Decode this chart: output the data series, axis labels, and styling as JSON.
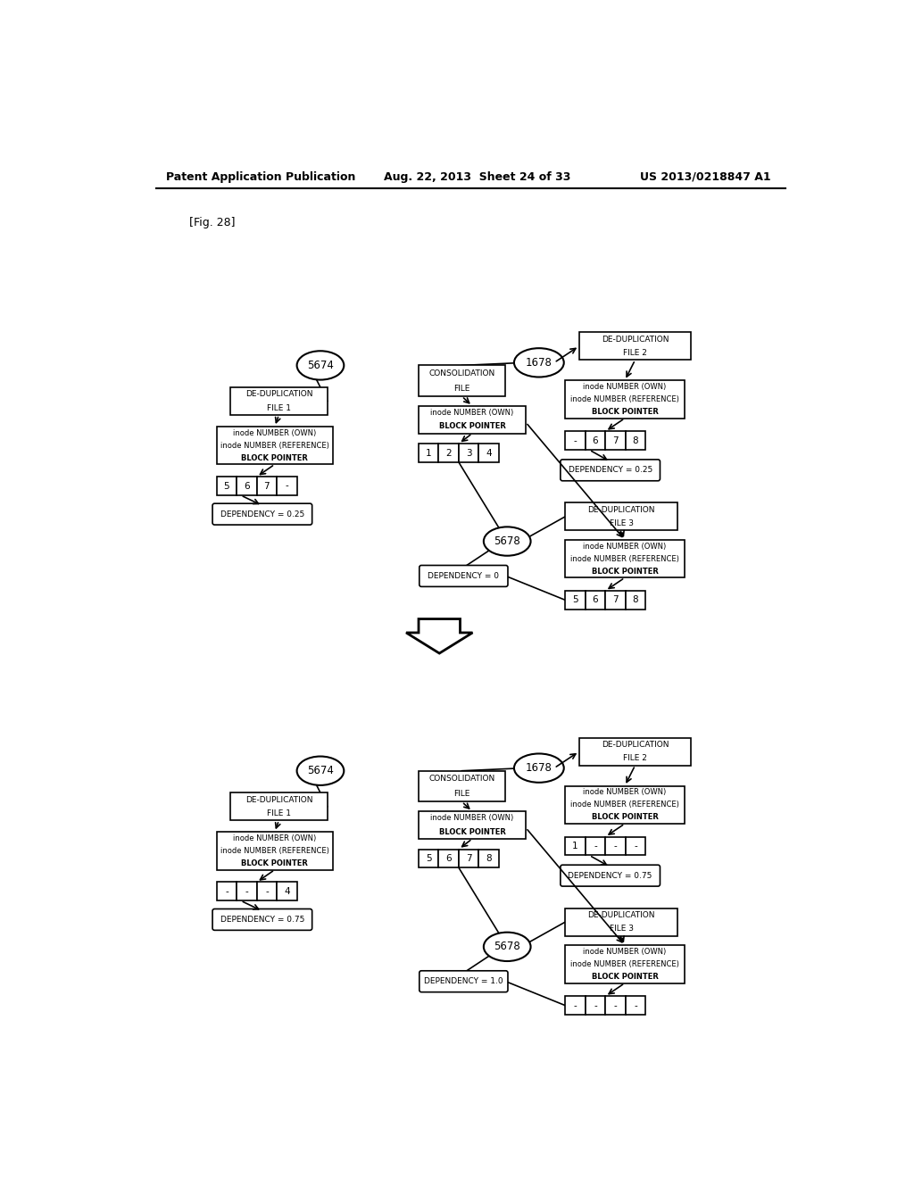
{
  "header_left": "Patent Application Publication",
  "header_mid": "Aug. 22, 2013  Sheet 24 of 33",
  "header_right": "US 2013/0218847 A1",
  "fig_label": "[Fig. 28]",
  "bg_color": "#ffffff",
  "line_color": "#000000"
}
